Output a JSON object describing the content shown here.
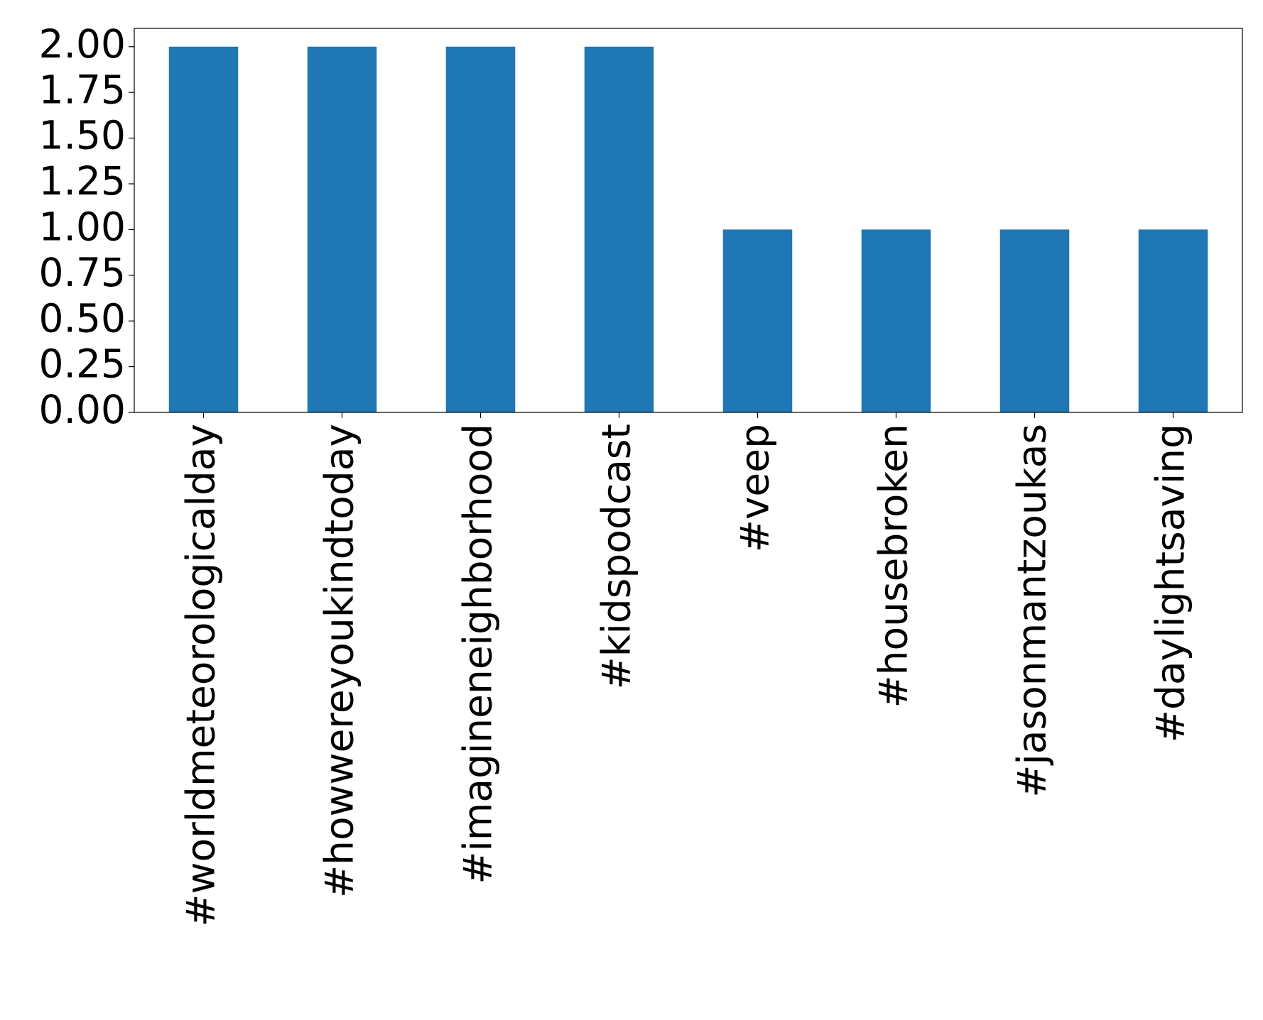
{
  "chart_data": {
    "type": "bar",
    "categories": [
      "#worldmeteorologicalday",
      "#howwereyoukindtoday",
      "#imagineneighborhood",
      "#kidspodcast",
      "#veep",
      "#housebroken",
      "#jasonmantzoukas",
      "#daylightsaving"
    ],
    "values": [
      2,
      2,
      2,
      2,
      1,
      1,
      1,
      1
    ],
    "color": "#1f77b4",
    "ylim": [
      0,
      2.1
    ],
    "yticks": [
      {
        "value": 0,
        "label": "0.00"
      },
      {
        "value": 0.25,
        "label": "0.25"
      },
      {
        "value": 0.5,
        "label": "0.50"
      },
      {
        "value": 0.75,
        "label": "0.75"
      },
      {
        "value": 1,
        "label": "1.00"
      },
      {
        "value": 1.25,
        "label": "1.25"
      },
      {
        "value": 1.5,
        "label": "1.50"
      },
      {
        "value": 1.75,
        "label": "1.75"
      },
      {
        "value": 2,
        "label": "2.00"
      }
    ],
    "grid": false
  }
}
